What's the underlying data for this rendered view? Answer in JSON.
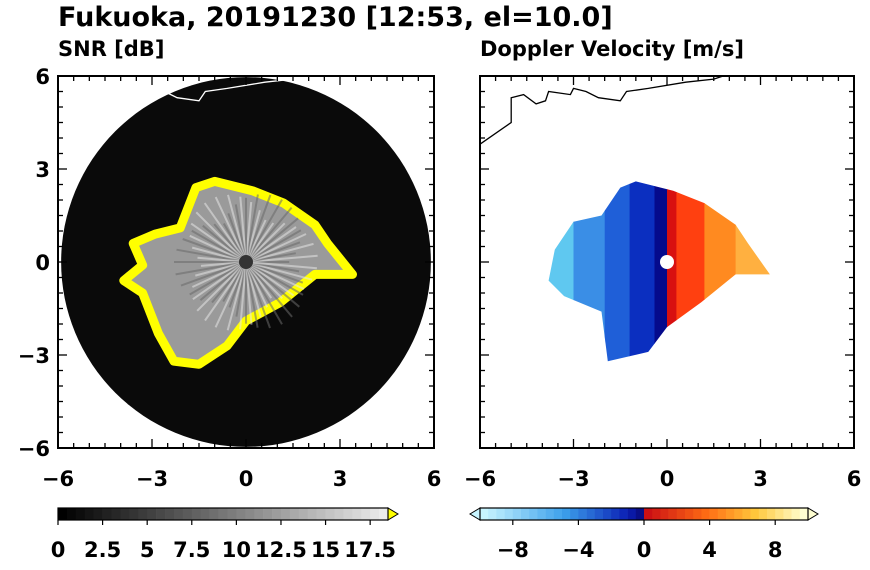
{
  "title": "Fukuoka, 20191230 [12:53, el=10.0]",
  "chart_data": [
    {
      "type": "heatmap",
      "title": "SNR [dB]",
      "xlim": [
        -6,
        6
      ],
      "ylim": [
        -6,
        6
      ],
      "xticks": [
        -6,
        -3,
        0,
        3,
        6
      ],
      "yticks": [
        -6,
        -3,
        0,
        3,
        6
      ],
      "xtick_labels": [
        "−6",
        "−3",
        "0",
        "3",
        "6"
      ],
      "ytick_labels": [
        "−6",
        "−3",
        "0",
        "3",
        "6"
      ],
      "range_ring_radius": 5.9,
      "echo_region": [
        [
          -2.1,
          1.1
        ],
        [
          -1.6,
          2.4
        ],
        [
          -1.0,
          2.6
        ],
        [
          0.2,
          2.3
        ],
        [
          1.2,
          1.9
        ],
        [
          2.2,
          1.2
        ],
        [
          2.6,
          0.6
        ],
        [
          3.4,
          -0.4
        ],
        [
          2.2,
          -0.4
        ],
        [
          1.1,
          -1.3
        ],
        [
          0.0,
          -1.9
        ],
        [
          -0.6,
          -2.7
        ],
        [
          -1.5,
          -3.3
        ],
        [
          -2.3,
          -3.2
        ],
        [
          -2.8,
          -2.3
        ],
        [
          -3.3,
          -1.0
        ],
        [
          -3.9,
          -0.6
        ],
        [
          -3.3,
          -0.1
        ],
        [
          -3.6,
          0.6
        ],
        [
          -2.9,
          0.9
        ]
      ],
      "colorbar": {
        "min": 0,
        "max": 18.5,
        "step": 0.5,
        "extend": "max",
        "tick_values": [
          0,
          2.5,
          5,
          7.5,
          10,
          12.5,
          15,
          17.5
        ],
        "tick_labels": [
          "0",
          "2.5",
          "5",
          "7.5",
          "10",
          "12.5",
          "15",
          "17.5"
        ]
      },
      "colors": {
        "background": "#0a0a0a",
        "overflow": "#ffff00",
        "coast": "#ffffff"
      }
    },
    {
      "type": "heatmap",
      "title": "Doppler Velocity [m/s]",
      "xlim": [
        -6,
        6
      ],
      "ylim": [
        -6,
        6
      ],
      "xticks": [
        -6,
        -3,
        0,
        3,
        6
      ],
      "yticks": [
        -6,
        -3,
        0,
        3,
        6
      ],
      "xtick_labels": [
        "−6",
        "−3",
        "0",
        "3",
        "6"
      ],
      "echo_region": [
        [
          -1.5,
          2.4
        ],
        [
          -1.0,
          2.6
        ],
        [
          0.2,
          2.3
        ],
        [
          1.2,
          1.9
        ],
        [
          2.2,
          1.2
        ],
        [
          2.6,
          0.6
        ],
        [
          3.3,
          -0.4
        ],
        [
          2.2,
          -0.4
        ],
        [
          1.1,
          -1.3
        ],
        [
          0.0,
          -2.1
        ],
        [
          -0.6,
          -2.9
        ],
        [
          -1.9,
          -3.2
        ],
        [
          -2.1,
          -1.6
        ],
        [
          -3.3,
          -1.1
        ],
        [
          -3.8,
          -0.6
        ],
        [
          -3.6,
          0.4
        ],
        [
          -3.0,
          1.3
        ],
        [
          -2.1,
          1.5
        ]
      ],
      "colorbar": {
        "min": -10,
        "max": 10,
        "step": 0.5,
        "extend": "both",
        "tick_values": [
          -8,
          -4,
          0,
          4,
          8
        ],
        "tick_labels": [
          "−8",
          "−4",
          "0",
          "4",
          "8"
        ]
      },
      "colors": {
        "background": "#ffffff",
        "coast": "#000000"
      }
    }
  ],
  "coastline": [
    [
      -6.0,
      3.8
    ],
    [
      -5.0,
      4.5
    ],
    [
      -5.0,
      5.3
    ],
    [
      -4.6,
      5.4
    ],
    [
      -4.2,
      5.1
    ],
    [
      -3.9,
      5.2
    ],
    [
      -3.8,
      5.5
    ],
    [
      -3.1,
      5.4
    ],
    [
      -3.0,
      5.6
    ],
    [
      -2.6,
      5.5
    ],
    [
      -2.2,
      5.3
    ],
    [
      -1.5,
      5.2
    ],
    [
      -1.3,
      5.5
    ],
    [
      -0.6,
      5.6
    ],
    [
      0.6,
      5.8
    ],
    [
      1.5,
      5.9
    ],
    [
      1.8,
      6.0
    ]
  ]
}
